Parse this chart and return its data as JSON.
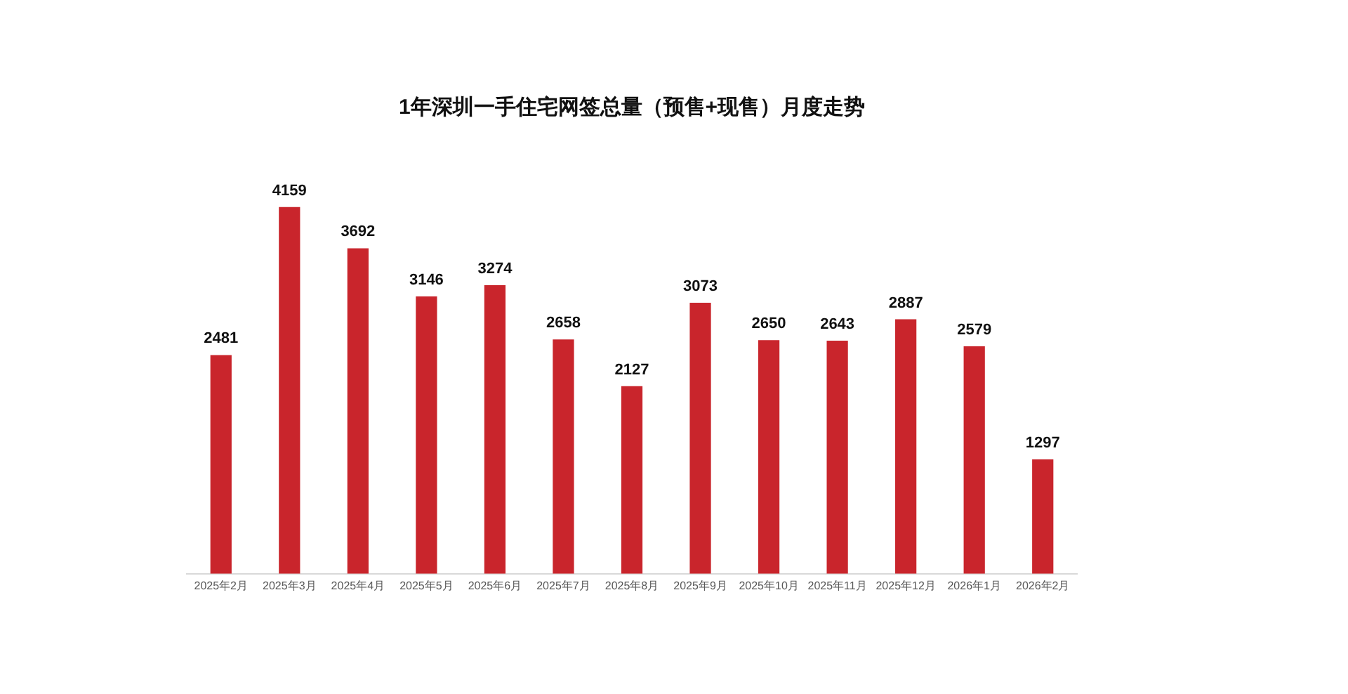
{
  "chart_data": {
    "type": "bar",
    "title": "1年深圳一手住宅网签总量（预售+现售）月度走势",
    "categories": [
      "2025年2月",
      "2025年3月",
      "2025年4月",
      "2025年5月",
      "2025年6月",
      "2025年7月",
      "2025年8月",
      "2025年9月",
      "2025年10月",
      "2025年11月",
      "2025年12月",
      "2026年1月",
      "2026年2月"
    ],
    "values": [
      2481,
      4159,
      3692,
      3146,
      3274,
      2658,
      2127,
      3073,
      2650,
      2643,
      2887,
      2579,
      1297
    ],
    "color": "#c9252c",
    "data_labels": true,
    "grid": false,
    "legend": false
  }
}
